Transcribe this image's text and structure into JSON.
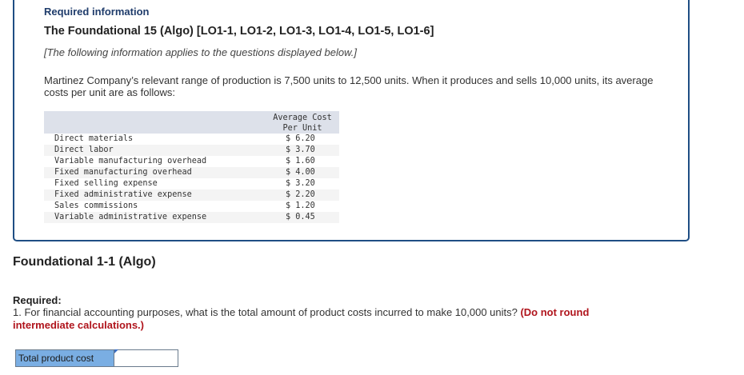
{
  "info_card": {
    "required_information": "Required information",
    "title": "The Foundational 15 (Algo) [LO1-1, LO1-2, LO1-3, LO1-4, LO1-5, LO1-6]",
    "note": "[The following information applies to the questions displayed below.]",
    "intro": "Martinez Company’s relevant range of production is 7,500 units to 12,500 units. When it produces and sells 10,000 units, its average costs per unit are as follows:",
    "table": {
      "header": [
        "",
        "Average Cost\nPer Unit"
      ],
      "header_line1": "Average Cost",
      "header_line2": "Per Unit",
      "rows": [
        {
          "label": "Direct materials",
          "value": "$ 6.20"
        },
        {
          "label": "Direct labor",
          "value": "$ 3.70"
        },
        {
          "label": "Variable manufacturing overhead",
          "value": "$ 1.60"
        },
        {
          "label": "Fixed manufacturing overhead",
          "value": "$ 4.00"
        },
        {
          "label": "Fixed selling expense",
          "value": "$ 3.20"
        },
        {
          "label": "Fixed administrative expense",
          "value": "$ 2.20"
        },
        {
          "label": "Sales commissions",
          "value": "$ 1.20"
        },
        {
          "label": "Variable administrative expense",
          "value": "$ 0.45"
        }
      ]
    }
  },
  "section": {
    "heading": "Foundational 1-1 (Algo)",
    "required_label": "Required:",
    "question_text": "1. For financial accounting purposes, what is the total amount of product costs incurred to make 10,000 units? ",
    "question_instruction": "(Do not round intermediate calculations.)"
  },
  "answer": {
    "label": "Total product cost",
    "value": ""
  },
  "colors": {
    "card_border": "#1f4e84",
    "required_info_text": "#1f3c6b",
    "instruction_red": "#b0141c",
    "answer_label_bg": "#7aaee3",
    "table_header_bg": "#dde1ea"
  }
}
